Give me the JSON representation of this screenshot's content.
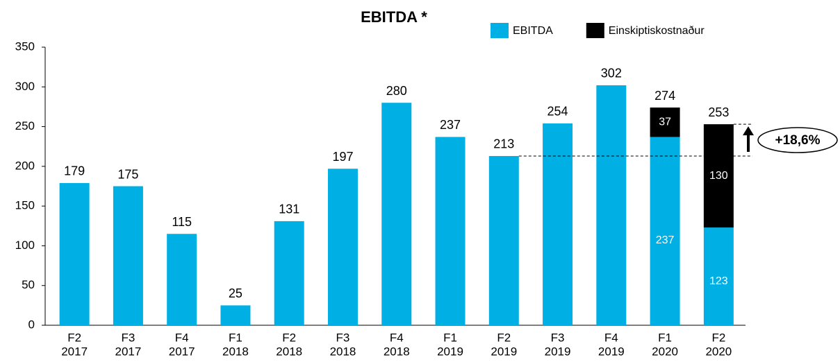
{
  "chart_data": {
    "type": "stacked_bar",
    "title": "EBITDA *",
    "categories": [
      [
        "F2",
        "2017"
      ],
      [
        "F3",
        "2017"
      ],
      [
        "F4",
        "2017"
      ],
      [
        "F1",
        "2018"
      ],
      [
        "F2",
        "2018"
      ],
      [
        "F3",
        "2018"
      ],
      [
        "F4",
        "2018"
      ],
      [
        "F1",
        "2019"
      ],
      [
        "F2",
        "2019"
      ],
      [
        "F3",
        "2019"
      ],
      [
        "F4",
        "2019"
      ],
      [
        "F1",
        "2020"
      ],
      [
        "F2",
        "2020"
      ]
    ],
    "series": [
      {
        "name": "EBITDA",
        "color": "#00b0e4",
        "values": [
          179,
          175,
          115,
          25,
          131,
          197,
          280,
          237,
          213,
          254,
          302,
          237,
          123
        ]
      },
      {
        "name": "Einskiptiskostnaður",
        "color": "#000000",
        "values": [
          null,
          null,
          null,
          null,
          null,
          null,
          null,
          null,
          null,
          null,
          null,
          37,
          130
        ]
      }
    ],
    "totals": [
      null,
      null,
      null,
      null,
      null,
      null,
      null,
      null,
      null,
      null,
      null,
      274,
      253
    ],
    "annotation": {
      "text": "+18,6%"
    },
    "ylim": [
      0,
      350
    ],
    "yticks": [
      0,
      50,
      100,
      150,
      200,
      250,
      300,
      350
    ],
    "legend": "top-right"
  }
}
